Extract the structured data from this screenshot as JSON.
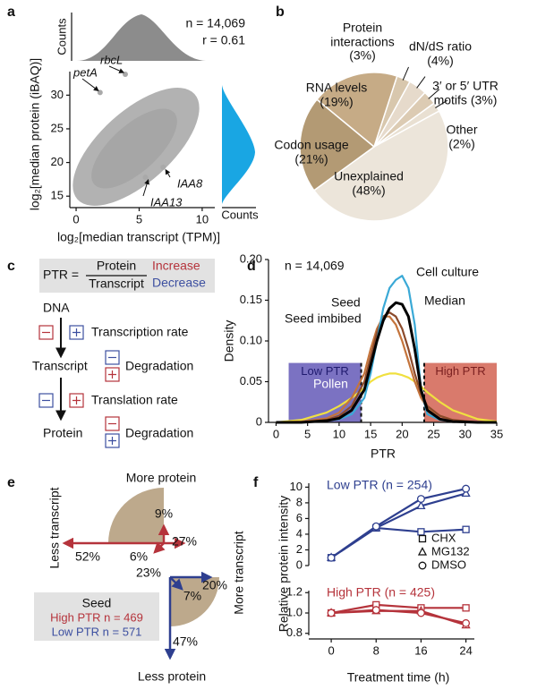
{
  "panel_labels": [
    "a",
    "b",
    "c",
    "d",
    "e",
    "f"
  ],
  "chart_data": [
    {
      "type": "scatter",
      "xlabel": "log₂[median transcript (TPM)]",
      "ylabel": "log₂[median protein (iBAQ)]",
      "xlim": [
        -0.5,
        11
      ],
      "ylim": [
        13.3,
        33.5
      ],
      "xticks": [
        0,
        5,
        10
      ],
      "yticks": [
        15,
        20,
        25,
        30
      ],
      "color": "#a9a9a9",
      "point_labels": [
        "rbcL",
        "petA",
        "IAA8",
        "IAA13"
      ],
      "x": [
        3.9,
        1.9,
        6.9,
        5.5
      ],
      "y": [
        33.1,
        30.4,
        19.3,
        17.8
      ],
      "annotations": [
        "n = 14,069",
        "r = 0.61"
      ],
      "hist_labels": [
        "Counts",
        "Counts"
      ],
      "hist_colors": [
        "#8c8c8c",
        "#19a6e3"
      ]
    },
    {
      "type": "pie",
      "categories": [
        "Protein interactions",
        "dN/dS ratio",
        "3′ or 5′ UTR motifs",
        "Other",
        "Unexplained",
        "Codon usage",
        "RNA levels"
      ],
      "values": [
        3,
        4,
        3,
        2,
        48,
        21,
        19
      ],
      "value_labels": [
        "(3%)",
        "(4%)",
        "(3%)",
        "(2%)",
        "(48%)",
        "(21%)",
        "(19%)"
      ],
      "colors": [
        "#d8c7ad",
        "#e6dacb",
        "#dccbb3",
        "#e9e0d2",
        "#ece5da",
        "#b39a74",
        "#c6ab86"
      ]
    },
    {
      "type": "line",
      "xlabel": "PTR",
      "ylabel": "Density",
      "annotation": "n = 14,069",
      "xlim": [
        -1.2,
        35
      ],
      "ylim": [
        0,
        0.2
      ],
      "xticks": [
        0,
        5,
        10,
        15,
        20,
        25,
        30,
        35
      ],
      "yticks": [
        0,
        0.05,
        {
          "value": 0.1,
          "label": "0.10"
        },
        0.15,
        {
          "value": 0.2,
          "label": "0.20"
        }
      ],
      "regions": [
        {
          "label": "Low PTR",
          "range": [
            2,
            13.5
          ],
          "top": 0.073,
          "color": "#7b72c2"
        },
        {
          "label": "High PTR",
          "range": [
            23.5,
            35
          ],
          "top": 0.073,
          "color": "#d97a6c"
        }
      ],
      "x": [
        0,
        4,
        8,
        10,
        12,
        14,
        15,
        16,
        17,
        18,
        19,
        20,
        21,
        22,
        23,
        24,
        26,
        28,
        32,
        35
      ],
      "series": [
        {
          "name": "Pollen",
          "color": "#f0e040",
          "values": [
            0,
            0.003,
            0.012,
            0.02,
            0.03,
            0.042,
            0.05,
            0.055,
            0.058,
            0.06,
            0.06,
            0.058,
            0.055,
            0.05,
            0.044,
            0.037,
            0.025,
            0.015,
            0.004,
            0.001
          ]
        },
        {
          "name": "Seed imbibed",
          "color": "#c4743c",
          "values": [
            0,
            0.001,
            0.005,
            0.012,
            0.03,
            0.06,
            0.09,
            0.115,
            0.13,
            0.13,
            0.12,
            0.1,
            0.075,
            0.05,
            0.03,
            0.018,
            0.008,
            0.003,
            0,
            0
          ]
        },
        {
          "name": "Seed",
          "color": "#8b4a2b",
          "values": [
            0,
            0,
            0.003,
            0.008,
            0.02,
            0.05,
            0.08,
            0.11,
            0.13,
            0.135,
            0.13,
            0.115,
            0.09,
            0.06,
            0.035,
            0.02,
            0.008,
            0.003,
            0,
            0
          ]
        },
        {
          "name": "Cell culture",
          "color": "#3aa9d6",
          "values": [
            0,
            0,
            0.002,
            0.004,
            0.01,
            0.03,
            0.06,
            0.1,
            0.14,
            0.165,
            0.175,
            0.18,
            0.165,
            0.12,
            0.04,
            0.01,
            0.003,
            0.001,
            0,
            0
          ]
        },
        {
          "name": "Median",
          "color": "#000000",
          "values": [
            0,
            0,
            0.002,
            0.005,
            0.015,
            0.04,
            0.07,
            0.1,
            0.125,
            0.14,
            0.147,
            0.145,
            0.13,
            0.09,
            0.04,
            0.015,
            0.004,
            0.001,
            0,
            0
          ]
        }
      ]
    },
    {
      "type": "line",
      "title": "Low PTR (n = 254)",
      "color": "#2e3f8f",
      "ylabel": "Relative protein intensity",
      "ylim": [
        0,
        10.5
      ],
      "yticks": [
        0,
        2,
        4,
        6,
        8,
        10
      ],
      "xlim": [
        -4,
        25.5
      ],
      "x": [
        0,
        8,
        16,
        24
      ],
      "series": [
        {
          "name": "CHX",
          "marker": "square",
          "values": [
            1,
            4.8,
            4.3,
            4.6
          ]
        },
        {
          "name": "MG132",
          "marker": "triangle",
          "values": [
            1,
            4.8,
            7.6,
            9.2
          ]
        },
        {
          "name": "DMSO",
          "marker": "circle",
          "values": [
            1,
            5,
            8.5,
            9.8
          ]
        }
      ]
    },
    {
      "type": "line",
      "title": "High PTR (n = 425)",
      "color": "#b5333b",
      "xlabel": "Treatment time (h)",
      "ylim": [
        0.78,
        1.22
      ],
      "yticks": [
        0.8,
        {
          "value": 1,
          "label": "1.0"
        },
        1.2
      ],
      "xlim": [
        -4,
        25.5
      ],
      "xticks": [
        0,
        8,
        16,
        24
      ],
      "x": [
        0,
        8,
        16,
        24
      ],
      "series": [
        {
          "marker": "square",
          "values": [
            1,
            1.08,
            1.05,
            1.05
          ]
        },
        {
          "marker": "triangle",
          "values": [
            1,
            1.02,
            1.02,
            0.88
          ]
        },
        {
          "marker": "circle",
          "values": [
            1,
            1.03,
            1,
            0.9
          ]
        }
      ]
    }
  ],
  "diagram_c": {
    "ptr": "PTR =",
    "numerator": "Protein",
    "denominator": "Transcript",
    "increase": "Increase",
    "decrease": "Decrease",
    "dna": "DNA",
    "transcription": "Transcription rate",
    "transcript": "Transcript",
    "degradation_1": "Degradation",
    "translation": "Translation rate",
    "protein": "Protein",
    "degradation_2": "Degradation"
  },
  "diagram_e": {
    "more_protein": "More protein",
    "less_transcript": "Less transcript",
    "more_transcript": "More transcript",
    "less_protein": "Less protein",
    "percents": [
      "9%",
      "27%",
      "6%",
      "52%",
      "23%",
      "7%",
      "20%",
      "47%"
    ],
    "legend_title": "Seed",
    "high": "High PTR n = 469",
    "low": "Low PTR n = 571"
  }
}
